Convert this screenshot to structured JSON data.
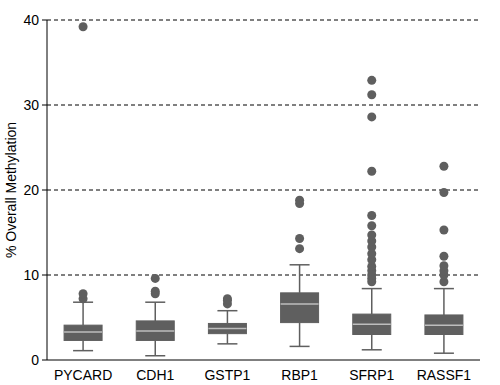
{
  "chart_data": {
    "type": "box",
    "y_label": "% Overall Methylation",
    "categories": [
      "PYCARD",
      "CDH1",
      "GSTP1",
      "RBP1",
      "SFRP1",
      "RASSF1"
    ],
    "boxes": [
      {
        "low": 1.1,
        "q1": 2.3,
        "median": 3.3,
        "q3": 4.1,
        "high": 6.8,
        "outliers": [
          7.2,
          7.8,
          39.2
        ]
      },
      {
        "low": 0.5,
        "q1": 2.3,
        "median": 3.4,
        "q3": 4.6,
        "high": 6.8,
        "outliers": [
          7.8,
          8.1,
          9.6
        ]
      },
      {
        "low": 1.9,
        "q1": 3.1,
        "median": 3.7,
        "q3": 4.3,
        "high": 5.8,
        "outliers": [
          6.6,
          7.0,
          7.2
        ]
      },
      {
        "low": 1.6,
        "q1": 4.4,
        "median": 6.6,
        "q3": 7.9,
        "high": 11.2,
        "outliers": [
          13.1,
          14.3,
          18.4,
          18.8
        ]
      },
      {
        "low": 1.2,
        "q1": 3.0,
        "median": 4.2,
        "q3": 5.4,
        "high": 8.4,
        "outliers": [
          9.2,
          9.6,
          10.0,
          10.5,
          11.0,
          11.8,
          12.5,
          13.3,
          14.0,
          14.7,
          15.8,
          17.0,
          22.2,
          28.6,
          31.2,
          32.9
        ]
      },
      {
        "low": 0.8,
        "q1": 3.0,
        "median": 4.1,
        "q3": 5.3,
        "high": 8.4,
        "outliers": [
          9.2,
          10.0,
          10.5,
          11.1,
          12.2,
          15.3,
          19.7,
          22.8
        ]
      }
    ],
    "color": "#5f5f5f",
    "ylim": [
      0,
      40
    ],
    "yticks": [
      0,
      10,
      20,
      30,
      40
    ],
    "grid": true
  }
}
